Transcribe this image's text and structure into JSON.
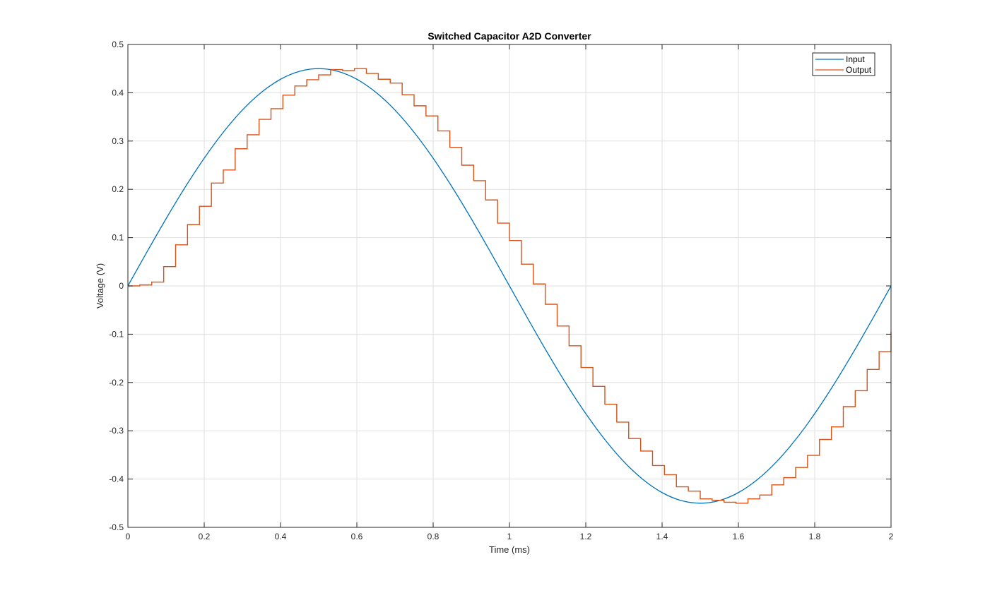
{
  "chart_data": {
    "type": "line",
    "title": "Switched Capacitor A2D Converter",
    "xlabel": "Time (ms)",
    "ylabel": "Voltage (V)",
    "xlim": [
      0,
      2
    ],
    "ylim": [
      -0.5,
      0.5
    ],
    "xticks": [
      0,
      0.2,
      0.4,
      0.6,
      0.8,
      1,
      1.2,
      1.4,
      1.6,
      1.8,
      2
    ],
    "xtick_labels": [
      "0",
      "0.2",
      "0.4",
      "0.6",
      "0.8",
      "1",
      "1.2",
      "1.4",
      "1.6",
      "1.8",
      "2"
    ],
    "yticks": [
      -0.5,
      -0.4,
      -0.3,
      -0.2,
      -0.1,
      0,
      0.1,
      0.2,
      0.3,
      0.4,
      0.5
    ],
    "ytick_labels": [
      "-0.5",
      "-0.4",
      "-0.3",
      "-0.2",
      "-0.1",
      "0",
      "0.1",
      "0.2",
      "0.3",
      "0.4",
      "0.5"
    ],
    "grid": true,
    "legend_position": "top-right",
    "series": [
      {
        "name": "Input",
        "color": "#0072BD",
        "style": "line",
        "x": [
          0,
          0.05,
          0.1,
          0.15,
          0.2,
          0.25,
          0.3,
          0.35,
          0.4,
          0.45,
          0.5,
          0.55,
          0.6,
          0.65,
          0.7,
          0.75,
          0.8,
          0.85,
          0.9,
          0.95,
          1.0,
          1.05,
          1.1,
          1.15,
          1.2,
          1.25,
          1.3,
          1.35,
          1.4,
          1.45,
          1.5,
          1.55,
          1.6,
          1.65,
          1.7,
          1.75,
          1.8,
          1.85,
          1.9,
          1.95,
          2.0
        ],
        "y": [
          0,
          0.0704,
          0.1391,
          0.2043,
          0.2645,
          0.3182,
          0.3641,
          0.4009,
          0.428,
          0.4445,
          0.45,
          0.4445,
          0.428,
          0.4009,
          0.3641,
          0.3182,
          0.2645,
          0.2043,
          0.1391,
          0.0704,
          0,
          -0.0704,
          -0.1391,
          -0.2043,
          -0.2645,
          -0.3182,
          -0.3641,
          -0.4009,
          -0.428,
          -0.4445,
          -0.45,
          -0.4445,
          -0.428,
          -0.4009,
          -0.3641,
          -0.3182,
          -0.2645,
          -0.2043,
          -0.1391,
          -0.0704,
          0
        ]
      },
      {
        "name": "Output",
        "color": "#D95319",
        "style": "step",
        "x": [
          0,
          0.0312,
          0.0625,
          0.0938,
          0.125,
          0.1562,
          0.1875,
          0.2188,
          0.25,
          0.2812,
          0.3125,
          0.3438,
          0.375,
          0.4062,
          0.4375,
          0.4688,
          0.5,
          0.5312,
          0.5625,
          0.5938,
          0.625,
          0.6562,
          0.6875,
          0.7188,
          0.75,
          0.7812,
          0.8125,
          0.8438,
          0.875,
          0.9062,
          0.9375,
          0.9688,
          1.0,
          1.0312,
          1.0625,
          1.0938,
          1.125,
          1.1562,
          1.1875,
          1.2188,
          1.25,
          1.2812,
          1.3125,
          1.3438,
          1.375,
          1.4062,
          1.4375,
          1.4688,
          1.5,
          1.5312,
          1.5625,
          1.5938,
          1.625,
          1.6562,
          1.6875,
          1.7188,
          1.75,
          1.7812,
          1.8125,
          1.8438,
          1.875,
          1.9062,
          1.9375,
          1.9688,
          2.0
        ],
        "y": [
          0,
          0.002,
          0.008,
          0.04,
          0.085,
          0.127,
          0.165,
          0.213,
          0.24,
          0.284,
          0.313,
          0.345,
          0.367,
          0.395,
          0.414,
          0.427,
          0.437,
          0.448,
          0.446,
          0.45,
          0.44,
          0.428,
          0.42,
          0.396,
          0.373,
          0.352,
          0.321,
          0.287,
          0.25,
          0.218,
          0.178,
          0.13,
          0.094,
          0.045,
          0.004,
          -0.038,
          -0.083,
          -0.124,
          -0.169,
          -0.208,
          -0.245,
          -0.282,
          -0.316,
          -0.342,
          -0.372,
          -0.391,
          -0.416,
          -0.425,
          -0.441,
          -0.444,
          -0.448,
          -0.45,
          -0.441,
          -0.433,
          -0.412,
          -0.397,
          -0.376,
          -0.351,
          -0.318,
          -0.292,
          -0.25,
          -0.217,
          -0.173,
          -0.136,
          -0.095
        ]
      }
    ]
  }
}
